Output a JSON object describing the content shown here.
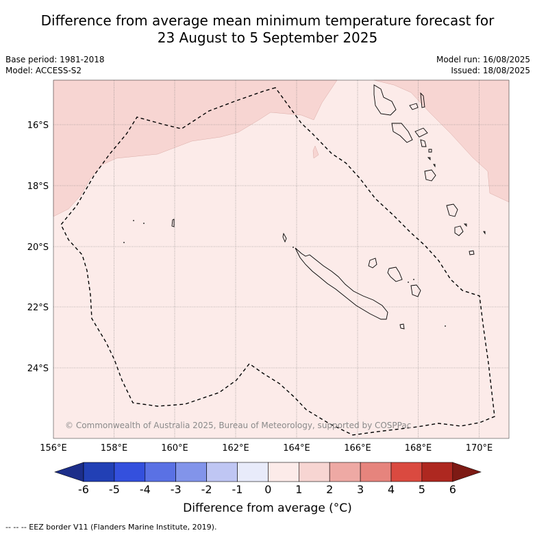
{
  "title": {
    "line1": "Difference from average mean minimum temperature forecast for",
    "line2": "23 August to 5 September 2025"
  },
  "meta_left": {
    "base_period": "Base period: 1981-2018",
    "model": "Model: ACCESS-S2"
  },
  "meta_right": {
    "model_run": "Model run: 16/08/2025",
    "issued": "Issued: 18/08/2025"
  },
  "map": {
    "x_ticks": [
      "156°E",
      "158°E",
      "160°E",
      "162°E",
      "164°E",
      "166°E",
      "168°E",
      "170°E"
    ],
    "y_ticks": [
      "16°S",
      "18°S",
      "20°S",
      "22°S",
      "24°S"
    ],
    "lon_range": [
      156,
      171
    ],
    "lat_range": [
      -26.35,
      -14.55
    ],
    "copyright": "© Commonwealth of Australia 2025, Bureau of Meteorology, supported by COSPPac"
  },
  "colorbar": {
    "labels": [
      "-6",
      "-5",
      "-4",
      "-3",
      "-2",
      "-1",
      "0",
      "1",
      "2",
      "3",
      "4",
      "5",
      "6"
    ],
    "colors": [
      "#1c2e8a",
      "#2240b5",
      "#3450dd",
      "#5a71e4",
      "#8294ea",
      "#bfc6f3",
      "#e8ebfa",
      "#fcebe9",
      "#f7d5d2",
      "#eea9a4",
      "#e6847d",
      "#da4a40",
      "#ae2820",
      "#7d1a14"
    ],
    "title": "Difference from average (°C)"
  },
  "footnote": "-- -- -- EEZ border V11 (Flanders Marine Institute, 2019)."
}
